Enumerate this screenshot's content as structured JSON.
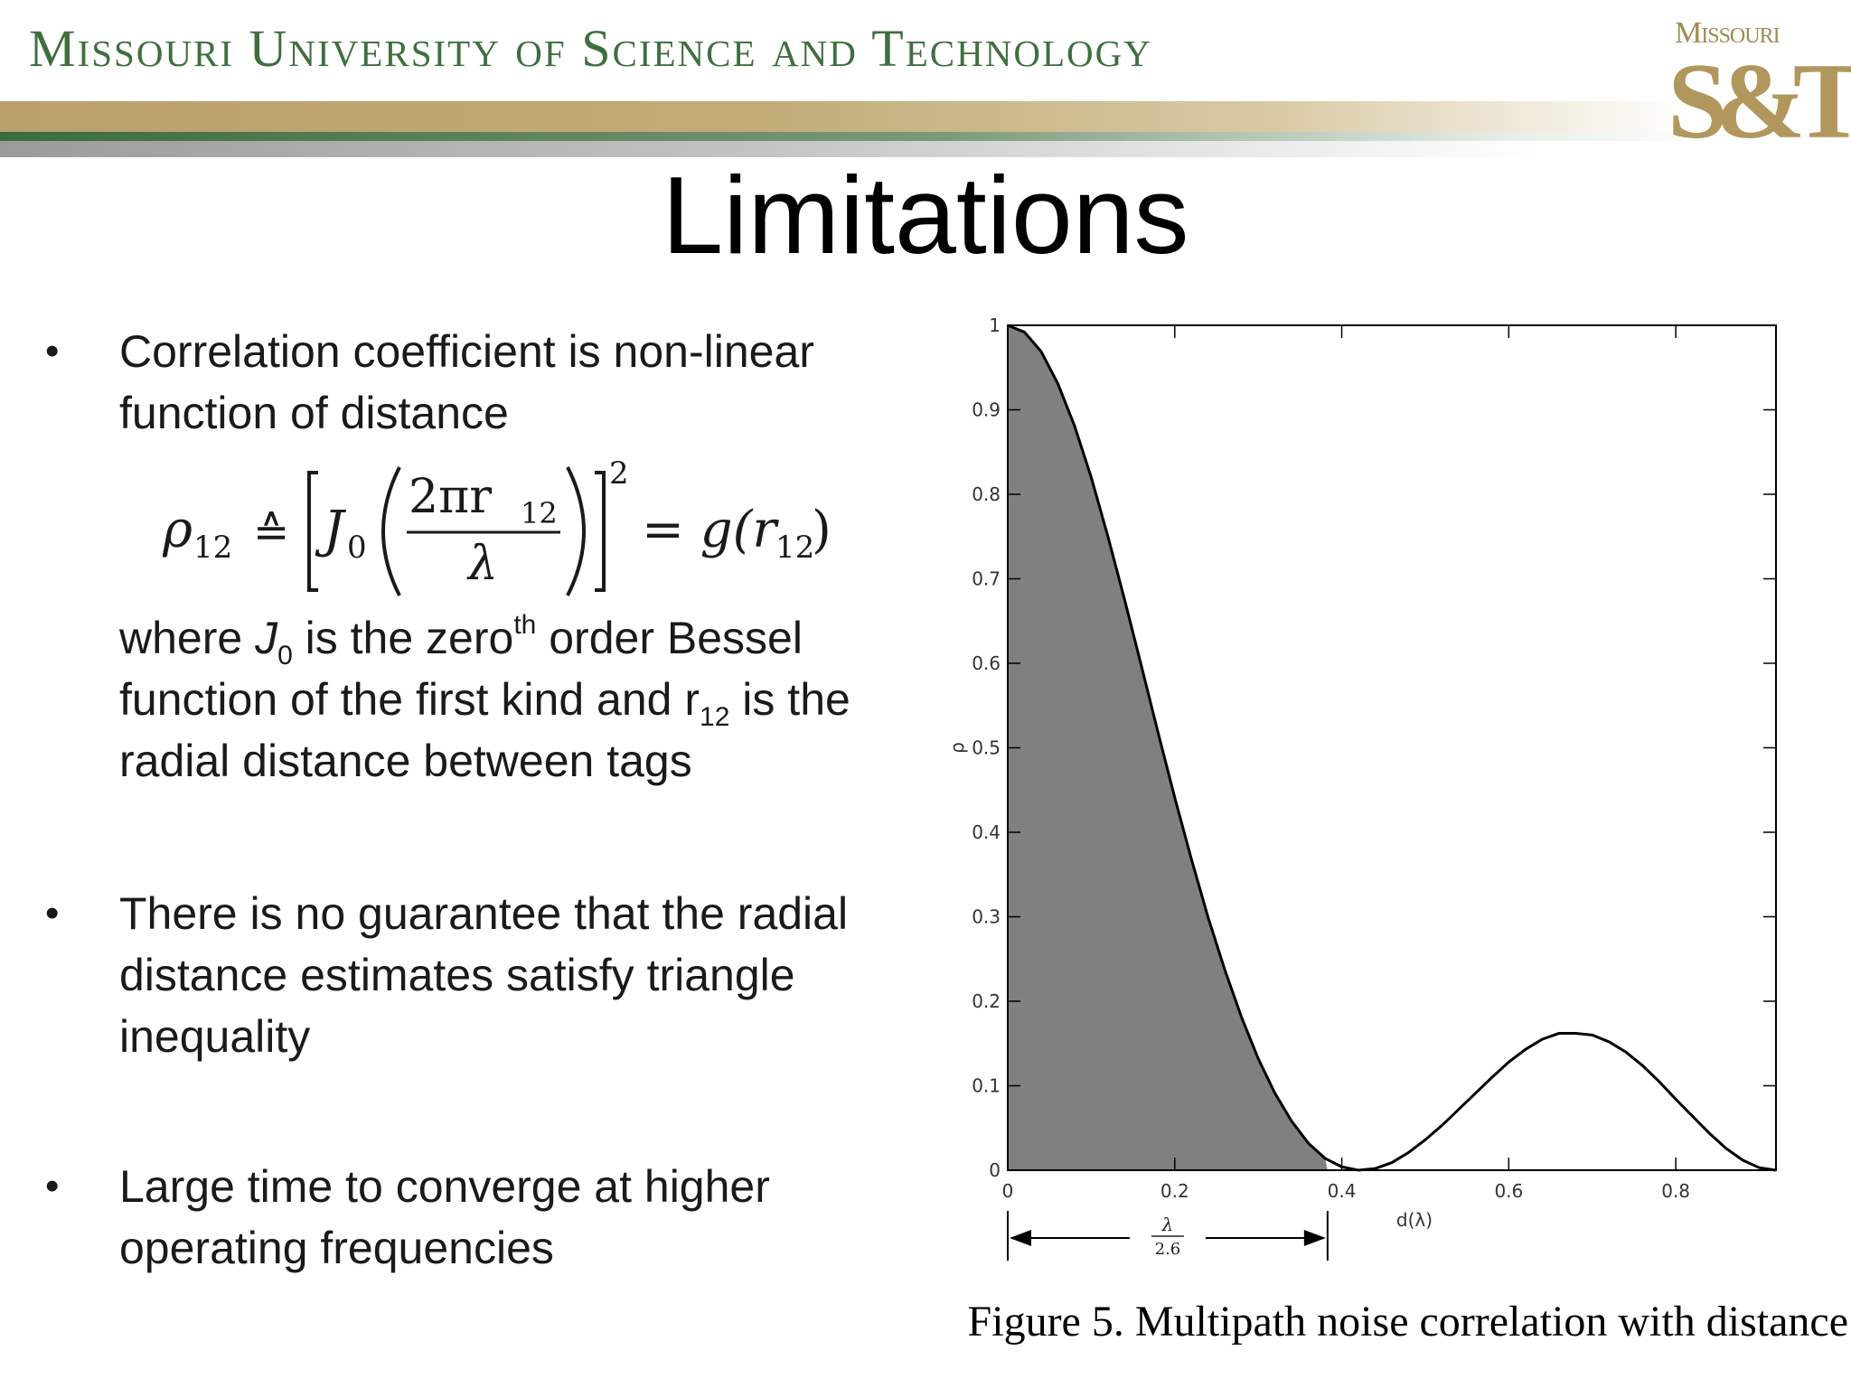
{
  "header": {
    "university_name": "Missouri University of Science and Technology",
    "logo_top": "Missouri",
    "logo_main": "S&T"
  },
  "slide": {
    "title": "Limitations",
    "bullets": [
      {
        "text": "Correlation coefficient is non-linear function of distance"
      },
      {
        "text": "There is no guarantee that the radial distance estimates satisfy triangle inequality"
      },
      {
        "text": "Large time to converge at higher operating frequencies"
      }
    ],
    "bullet_symbol": "•",
    "formula": {
      "lhs": "ρ",
      "lhs_sub": "12",
      "def_symbol": "≙",
      "bessel": "J",
      "bessel_sub": "0",
      "numerator": "2πr",
      "numerator_sub": "12",
      "denominator": "λ",
      "exponent": "2",
      "rhs": "= g(r",
      "rhs_sub": "12",
      "rhs_close": ")"
    },
    "description": {
      "p1": "where ",
      "j": "J",
      "j_sub": "0",
      "p2": " is the zero",
      "sup": "th",
      "p3": " order Bessel function of the first kind and r",
      "r_sub": "12",
      "p4": " is the radial distance between tags"
    },
    "caption": "Figure 5. Multipath noise correlation with distance"
  },
  "chart_data": {
    "type": "area",
    "title": "",
    "xlabel": "d(λ)",
    "ylabel": "ρ",
    "xlim": [
      0,
      0.92
    ],
    "ylim": [
      0,
      1
    ],
    "x_ticks": [
      "0",
      "0.2",
      "0.4",
      "0.6",
      "0.8"
    ],
    "y_ticks": [
      "0",
      "0.1",
      "0.2",
      "0.3",
      "0.4",
      "0.5",
      "0.6",
      "0.7",
      "0.8",
      "0.9",
      "1"
    ],
    "series": [
      {
        "x": [
          0,
          0.02,
          0.04,
          0.06,
          0.08,
          0.1,
          0.12,
          0.14,
          0.16,
          0.18,
          0.2,
          0.22,
          0.24,
          0.26,
          0.28,
          0.3,
          0.32,
          0.34,
          0.36,
          0.38,
          0.4,
          0.42,
          0.44,
          0.46,
          0.48,
          0.5,
          0.52,
          0.54,
          0.56,
          0.58,
          0.6,
          0.62,
          0.64,
          0.66,
          0.68,
          0.7,
          0.72,
          0.74,
          0.76,
          0.78,
          0.8,
          0.82,
          0.84,
          0.86,
          0.88,
          0.9,
          0.92
        ],
        "values": [
          1.0,
          0.992,
          0.969,
          0.931,
          0.881,
          0.82,
          0.75,
          0.675,
          0.597,
          0.518,
          0.441,
          0.368,
          0.299,
          0.237,
          0.181,
          0.132,
          0.091,
          0.058,
          0.032,
          0.014,
          0.004,
          0.0,
          0.002,
          0.009,
          0.021,
          0.036,
          0.053,
          0.072,
          0.091,
          0.11,
          0.128,
          0.143,
          0.155,
          0.162,
          0.162,
          0.16,
          0.152,
          0.14,
          0.124,
          0.105,
          0.084,
          0.064,
          0.044,
          0.026,
          0.012,
          0.003,
          0.0
        ]
      }
    ],
    "shaded_region": {
      "x_from": 0,
      "x_to": 0.383
    },
    "annotation": {
      "numerator": "λ",
      "denominator": "2.6",
      "x_from": 0,
      "x_to": 0.383
    },
    "grid": false,
    "fill_color": "#808080",
    "line_color": "#000000"
  }
}
